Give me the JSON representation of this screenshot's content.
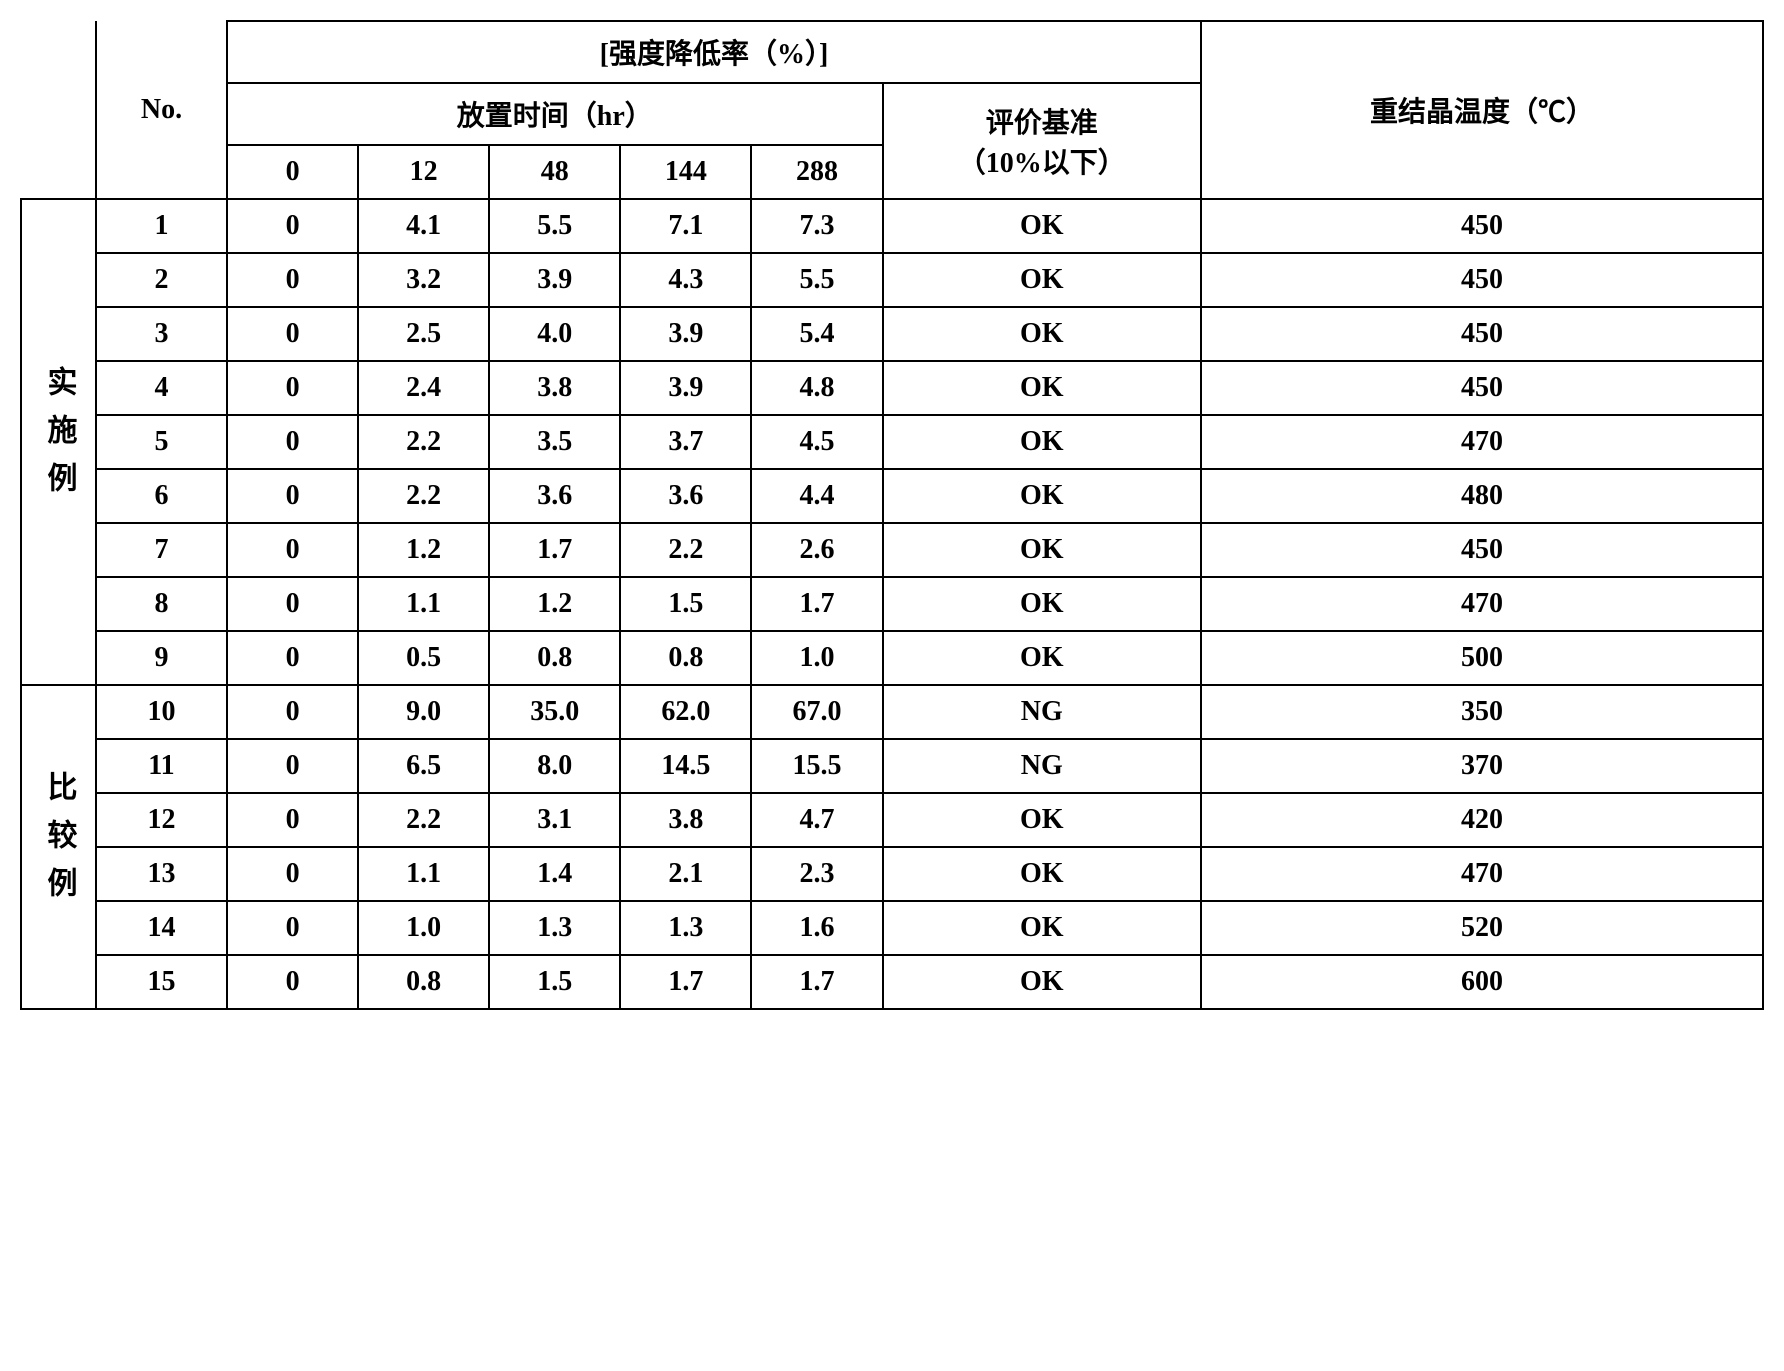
{
  "headers": {
    "main_title": "[强度降低率（%）]",
    "no_label": "No.",
    "time_label": "放置时间（hr）",
    "eval_label_line1": "评价基准",
    "eval_label_line2": "（10%以下）",
    "recryst_label": "重结晶温度（℃）",
    "time_cols": [
      "0",
      "12",
      "48",
      "144",
      "288"
    ]
  },
  "groups": [
    {
      "label": "实施例",
      "rows": [
        {
          "no": "1",
          "t": [
            "0",
            "4.1",
            "5.5",
            "7.1",
            "7.3"
          ],
          "eval": "OK",
          "rec": "450"
        },
        {
          "no": "2",
          "t": [
            "0",
            "3.2",
            "3.9",
            "4.3",
            "5.5"
          ],
          "eval": "OK",
          "rec": "450"
        },
        {
          "no": "3",
          "t": [
            "0",
            "2.5",
            "4.0",
            "3.9",
            "5.4"
          ],
          "eval": "OK",
          "rec": "450"
        },
        {
          "no": "4",
          "t": [
            "0",
            "2.4",
            "3.8",
            "3.9",
            "4.8"
          ],
          "eval": "OK",
          "rec": "450"
        },
        {
          "no": "5",
          "t": [
            "0",
            "2.2",
            "3.5",
            "3.7",
            "4.5"
          ],
          "eval": "OK",
          "rec": "470"
        },
        {
          "no": "6",
          "t": [
            "0",
            "2.2",
            "3.6",
            "3.6",
            "4.4"
          ],
          "eval": "OK",
          "rec": "480"
        },
        {
          "no": "7",
          "t": [
            "0",
            "1.2",
            "1.7",
            "2.2",
            "2.6"
          ],
          "eval": "OK",
          "rec": "450"
        },
        {
          "no": "8",
          "t": [
            "0",
            "1.1",
            "1.2",
            "1.5",
            "1.7"
          ],
          "eval": "OK",
          "rec": "470"
        },
        {
          "no": "9",
          "t": [
            "0",
            "0.5",
            "0.8",
            "0.8",
            "1.0"
          ],
          "eval": "OK",
          "rec": "500"
        }
      ]
    },
    {
      "label": "比较例",
      "rows": [
        {
          "no": "10",
          "t": [
            "0",
            "9.0",
            "35.0",
            "62.0",
            "67.0"
          ],
          "eval": "NG",
          "rec": "350"
        },
        {
          "no": "11",
          "t": [
            "0",
            "6.5",
            "8.0",
            "14.5",
            "15.5"
          ],
          "eval": "NG",
          "rec": "370"
        },
        {
          "no": "12",
          "t": [
            "0",
            "2.2",
            "3.1",
            "3.8",
            "4.7"
          ],
          "eval": "OK",
          "rec": "420"
        },
        {
          "no": "13",
          "t": [
            "0",
            "1.1",
            "1.4",
            "2.1",
            "2.3"
          ],
          "eval": "OK",
          "rec": "470"
        },
        {
          "no": "14",
          "t": [
            "0",
            "1.0",
            "1.3",
            "1.3",
            "1.6"
          ],
          "eval": "OK",
          "rec": "520"
        },
        {
          "no": "15",
          "t": [
            "0",
            "0.8",
            "1.5",
            "1.7",
            "1.7"
          ],
          "eval": "OK",
          "rec": "600"
        }
      ]
    }
  ]
}
